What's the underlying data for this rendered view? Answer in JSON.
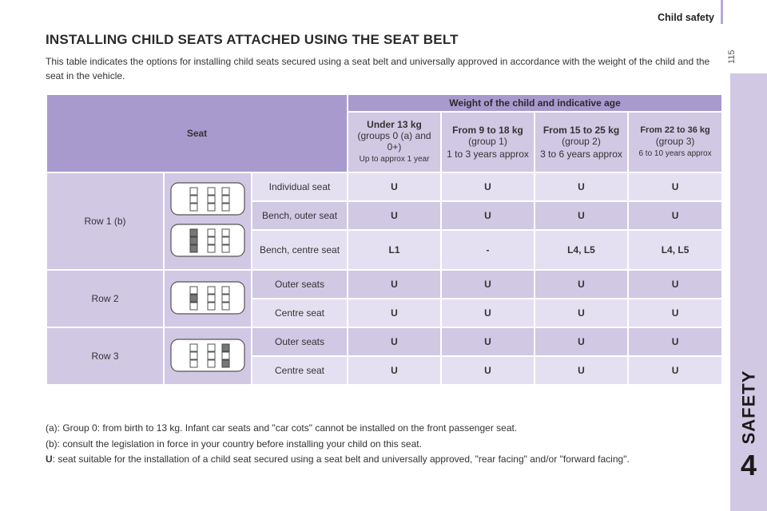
{
  "header": {
    "section_title": "Child safety",
    "page_number": "115"
  },
  "side_tab": {
    "label": "SAFETY",
    "chapter": "4"
  },
  "title": "INSTALLING CHILD SEATS ATTACHED USING THE SEAT BELT",
  "intro": "This table indicates the options for installing child seats secured using a seat belt and universally approved in accordance with the weight of the child and the seat in the vehicle.",
  "table": {
    "seat_header": "Seat",
    "weight_header": "Weight of the child and indicative age",
    "groups": [
      {
        "title": "Under 13 kg",
        "line1": "(groups 0 (a) and 0+)",
        "line2": "Up to approx 1 year"
      },
      {
        "title": "From 9 to 18 kg",
        "line1": "(group 1)",
        "line2": "1 to 3 years approx"
      },
      {
        "title": "From 15 to 25 kg",
        "line1": "(group 2)",
        "line2": "3 to 6 years approx"
      },
      {
        "title": "From 22 to 36 kg",
        "line1": "(group 3)",
        "line2": "6 to 10 years approx"
      }
    ],
    "rows": [
      {
        "row": "Row 1 (b)",
        "seats": [
          {
            "seat": "Individual seat",
            "values": [
              "U",
              "U",
              "U",
              "U"
            ]
          },
          {
            "seat": "Bench, outer seat",
            "values": [
              "U",
              "U",
              "U",
              "U"
            ]
          },
          {
            "seat": "Bench, centre seat",
            "values": [
              "L1",
              "-",
              "L4, L5",
              "L4, L5"
            ]
          }
        ]
      },
      {
        "row": "Row 2",
        "seats": [
          {
            "seat": "Outer seats",
            "values": [
              "U",
              "U",
              "U",
              "U"
            ]
          },
          {
            "seat": "Centre seat",
            "values": [
              "U",
              "U",
              "U",
              "U"
            ]
          }
        ]
      },
      {
        "row": "Row 3",
        "seats": [
          {
            "seat": "Outer seats",
            "values": [
              "U",
              "U",
              "U",
              "U"
            ]
          },
          {
            "seat": "Centre seat",
            "values": [
              "U",
              "U",
              "U",
              "U"
            ]
          }
        ]
      }
    ]
  },
  "notes": {
    "a": "(a): Group 0: from birth to 13 kg. Infant car seats and \"car cots\" cannot be installed on the front passenger seat.",
    "b": "(b): consult the legislation in force in your country before installing your child on this seat.",
    "u_key": "U",
    "u_text": ": seat suitable for the installation of a child seat secured using a seat belt and universally approved, \"rear facing\" and/or \"forward facing\"."
  }
}
